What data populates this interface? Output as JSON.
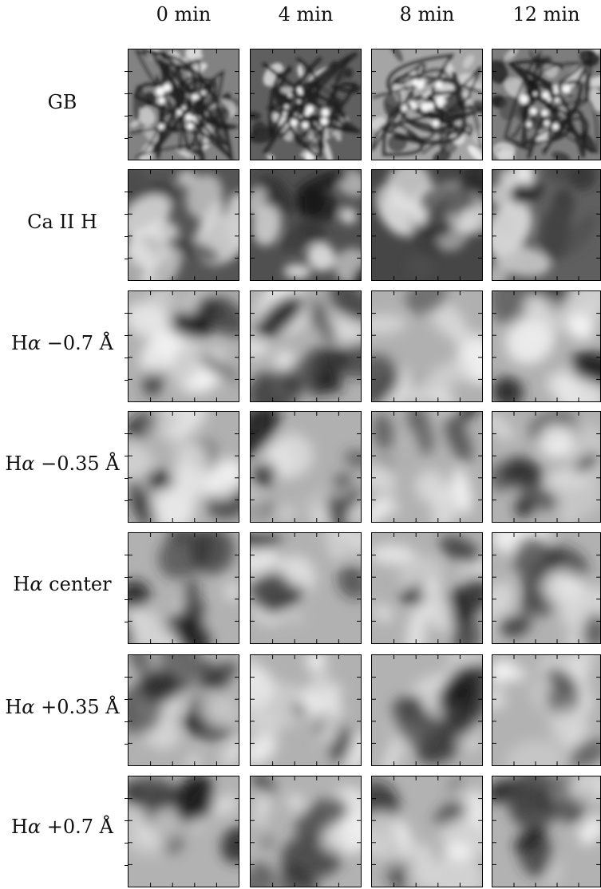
{
  "figure": {
    "columns": [
      "0 min",
      "4 min",
      "8 min",
      "12 min"
    ],
    "rows": [
      {
        "prefix": "GB",
        "suffix": ""
      },
      {
        "prefix": "Ca II H",
        "suffix": ""
      },
      {
        "prefix": "H",
        "greek": "α",
        "suffix": " −0.7 Å"
      },
      {
        "prefix": "H",
        "greek": "α",
        "suffix": " −0.35 Å"
      },
      {
        "prefix": "H",
        "greek": "α",
        "suffix": " center"
      },
      {
        "prefix": "H",
        "greek": "α",
        "suffix": " +0.35 Å"
      },
      {
        "prefix": "H",
        "greek": "α",
        "suffix": " +0.7 Å"
      }
    ]
  },
  "colors": {
    "frame": "#000000",
    "background": "#ffffff"
  }
}
